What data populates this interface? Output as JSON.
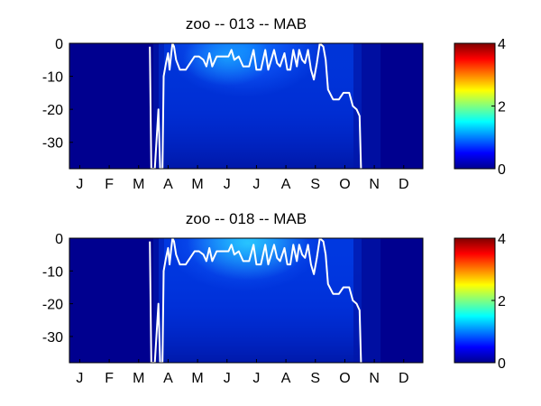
{
  "chart_data": [
    {
      "type": "heatmap",
      "title": "zoo -- 013 -- MAB",
      "xlabel": "",
      "ylabel": "",
      "x_tick_labels": [
        "J",
        "F",
        "M",
        "A",
        "M",
        "J",
        "J",
        "A",
        "S",
        "O",
        "N",
        "D"
      ],
      "y_ticks": [
        0,
        -10,
        -20,
        -30
      ],
      "ylim": [
        -38,
        0
      ],
      "colorbar": {
        "ticks": [
          0,
          2,
          4
        ],
        "range": [
          0,
          4
        ],
        "colormap": "jet"
      },
      "grid": false,
      "overlay_line": {
        "color": "#ffffff",
        "points": [
          [
            2.73,
            -1
          ],
          [
            2.78,
            -38
          ],
          [
            2.9,
            -38
          ],
          [
            3.02,
            -20
          ],
          [
            3.08,
            -38
          ],
          [
            3.16,
            -38
          ],
          [
            3.2,
            -10
          ],
          [
            3.28,
            -6
          ],
          [
            3.35,
            -3
          ],
          [
            3.4,
            -8
          ],
          [
            3.46,
            -3
          ],
          [
            3.5,
            0
          ],
          [
            3.55,
            -1
          ],
          [
            3.62,
            -5
          ],
          [
            3.75,
            -8
          ],
          [
            3.95,
            -8
          ],
          [
            4.1,
            -6
          ],
          [
            4.25,
            -4
          ],
          [
            4.4,
            -4
          ],
          [
            4.55,
            -5
          ],
          [
            4.65,
            -7
          ],
          [
            4.75,
            -3
          ],
          [
            4.85,
            -7
          ],
          [
            5.0,
            -4
          ],
          [
            5.2,
            -4
          ],
          [
            5.4,
            -4
          ],
          [
            5.5,
            -2
          ],
          [
            5.6,
            -5
          ],
          [
            5.75,
            -4
          ],
          [
            5.9,
            -7
          ],
          [
            6.1,
            -7
          ],
          [
            6.25,
            -2
          ],
          [
            6.35,
            -8
          ],
          [
            6.5,
            -8
          ],
          [
            6.65,
            -2
          ],
          [
            6.75,
            -8
          ],
          [
            6.85,
            -5
          ],
          [
            6.95,
            -2
          ],
          [
            7.05,
            -6
          ],
          [
            7.15,
            -7
          ],
          [
            7.3,
            -3
          ],
          [
            7.4,
            -8
          ],
          [
            7.5,
            -8
          ],
          [
            7.6,
            -2
          ],
          [
            7.72,
            -7
          ],
          [
            7.8,
            -2
          ],
          [
            7.9,
            -5
          ],
          [
            8.0,
            -6
          ],
          [
            8.1,
            -2
          ],
          [
            8.2,
            -8
          ],
          [
            8.3,
            -11
          ],
          [
            8.4,
            -6
          ],
          [
            8.5,
            0
          ],
          [
            8.62,
            -1
          ],
          [
            8.7,
            -5
          ],
          [
            8.78,
            -14
          ],
          [
            8.95,
            -17
          ],
          [
            9.15,
            -17
          ],
          [
            9.3,
            -15
          ],
          [
            9.5,
            -15
          ],
          [
            9.62,
            -19
          ],
          [
            9.75,
            -20
          ],
          [
            9.85,
            -22
          ],
          [
            9.9,
            -38
          ]
        ]
      }
    },
    {
      "type": "heatmap",
      "title": "zoo -- 018 -- MAB",
      "xlabel": "",
      "ylabel": "",
      "x_tick_labels": [
        "J",
        "F",
        "M",
        "A",
        "M",
        "J",
        "J",
        "A",
        "S",
        "O",
        "N",
        "D"
      ],
      "y_ticks": [
        0,
        -10,
        -20,
        -30
      ],
      "ylim": [
        -38,
        0
      ],
      "colorbar": {
        "ticks": [
          0,
          2,
          4
        ],
        "range": [
          0,
          4
        ],
        "colormap": "jet"
      },
      "grid": false,
      "overlay_line": {
        "color": "#ffffff",
        "points": [
          [
            2.73,
            -1
          ],
          [
            2.78,
            -38
          ],
          [
            2.9,
            -38
          ],
          [
            3.02,
            -20
          ],
          [
            3.08,
            -38
          ],
          [
            3.16,
            -38
          ],
          [
            3.2,
            -10
          ],
          [
            3.28,
            -6
          ],
          [
            3.35,
            -3
          ],
          [
            3.4,
            -8
          ],
          [
            3.46,
            -3
          ],
          [
            3.5,
            0
          ],
          [
            3.55,
            -1
          ],
          [
            3.62,
            -5
          ],
          [
            3.75,
            -8
          ],
          [
            3.95,
            -8
          ],
          [
            4.1,
            -6
          ],
          [
            4.25,
            -4
          ],
          [
            4.4,
            -4
          ],
          [
            4.55,
            -5
          ],
          [
            4.65,
            -7
          ],
          [
            4.75,
            -3
          ],
          [
            4.85,
            -7
          ],
          [
            5.0,
            -4
          ],
          [
            5.2,
            -4
          ],
          [
            5.4,
            -4
          ],
          [
            5.5,
            -2
          ],
          [
            5.6,
            -5
          ],
          [
            5.75,
            -4
          ],
          [
            5.9,
            -7
          ],
          [
            6.1,
            -7
          ],
          [
            6.25,
            -2
          ],
          [
            6.35,
            -8
          ],
          [
            6.5,
            -8
          ],
          [
            6.65,
            -2
          ],
          [
            6.75,
            -8
          ],
          [
            6.85,
            -5
          ],
          [
            6.95,
            -2
          ],
          [
            7.05,
            -6
          ],
          [
            7.15,
            -7
          ],
          [
            7.3,
            -3
          ],
          [
            7.4,
            -8
          ],
          [
            7.5,
            -8
          ],
          [
            7.6,
            -2
          ],
          [
            7.72,
            -7
          ],
          [
            7.8,
            -2
          ],
          [
            7.9,
            -5
          ],
          [
            8.0,
            -6
          ],
          [
            8.1,
            -2
          ],
          [
            8.2,
            -8
          ],
          [
            8.3,
            -11
          ],
          [
            8.4,
            -6
          ],
          [
            8.5,
            0
          ],
          [
            8.62,
            -1
          ],
          [
            8.7,
            -5
          ],
          [
            8.78,
            -14
          ],
          [
            8.95,
            -17
          ],
          [
            9.15,
            -17
          ],
          [
            9.3,
            -15
          ],
          [
            9.5,
            -15
          ],
          [
            9.62,
            -19
          ],
          [
            9.75,
            -20
          ],
          [
            9.85,
            -22
          ],
          [
            9.9,
            -38
          ]
        ]
      }
    }
  ]
}
